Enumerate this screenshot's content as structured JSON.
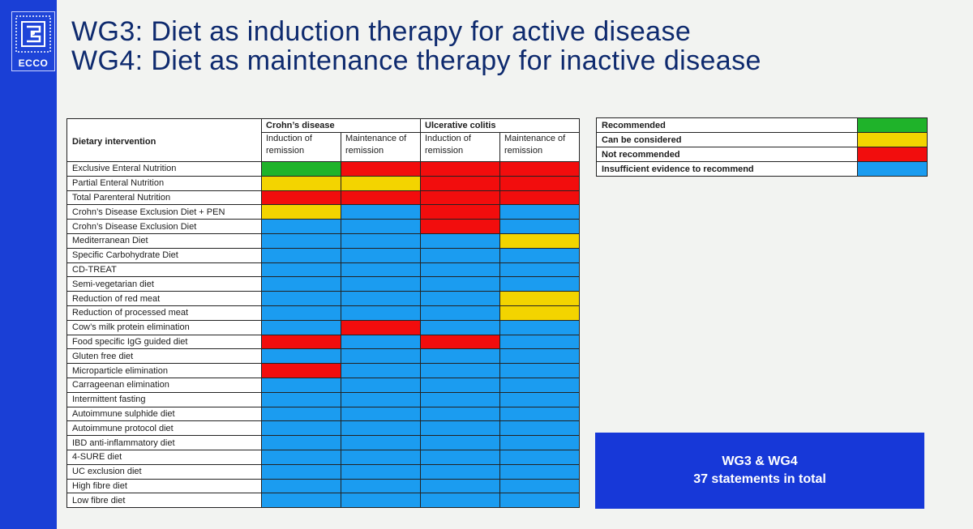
{
  "logo": {
    "text": "ECCO"
  },
  "title": {
    "line1": "WG3: Diet as induction therapy for active disease",
    "line2": "WG4: Diet as maintenance therapy for inactive disease"
  },
  "table": {
    "intervention_header": "Dietary intervention",
    "groups": [
      "Crohn’s disease",
      "Ulcerative colitis"
    ],
    "subheaders": [
      "Induction of remission",
      "Maintenance of remission",
      "Induction of remission",
      "Maintenance of remission"
    ],
    "rows": [
      {
        "name": "Exclusive Enteral Nutrition",
        "values": [
          "R",
          "N",
          "N",
          "N"
        ]
      },
      {
        "name": "Partial Enteral Nutrition",
        "values": [
          "C",
          "C",
          "N",
          "N"
        ]
      },
      {
        "name": "Total Parenteral Nutrition",
        "values": [
          "N",
          "N",
          "N",
          "N"
        ]
      },
      {
        "name": "Crohn’s Disease Exclusion Diet + PEN",
        "values": [
          "C",
          "I",
          "N",
          "I"
        ]
      },
      {
        "name": "Crohn’s Disease Exclusion Diet",
        "values": [
          "I",
          "I",
          "N",
          "I"
        ]
      },
      {
        "name": "Mediterranean Diet",
        "values": [
          "I",
          "I",
          "I",
          "C"
        ]
      },
      {
        "name": "Specific Carbohydrate Diet",
        "values": [
          "I",
          "I",
          "I",
          "I"
        ]
      },
      {
        "name": "CD-TREAT",
        "values": [
          "I",
          "I",
          "I",
          "I"
        ]
      },
      {
        "name": "Semi-vegetarian diet",
        "values": [
          "I",
          "I",
          "I",
          "I"
        ]
      },
      {
        "name": "Reduction of red meat",
        "values": [
          "I",
          "I",
          "I",
          "C"
        ]
      },
      {
        "name": "Reduction of processed meat",
        "values": [
          "I",
          "I",
          "I",
          "C"
        ]
      },
      {
        "name": "Cow’s milk protein elimination",
        "values": [
          "I",
          "N",
          "I",
          "I"
        ]
      },
      {
        "name": "Food specific IgG guided diet",
        "values": [
          "N",
          "I",
          "N",
          "I"
        ]
      },
      {
        "name": "Gluten free diet",
        "values": [
          "I",
          "I",
          "I",
          "I"
        ]
      },
      {
        "name": "Microparticle elimination",
        "values": [
          "N",
          "I",
          "I",
          "I"
        ]
      },
      {
        "name": "Carrageenan elimination",
        "values": [
          "I",
          "I",
          "I",
          "I"
        ]
      },
      {
        "name": "Intermittent fasting",
        "values": [
          "I",
          "I",
          "I",
          "I"
        ]
      },
      {
        "name": "Autoimmune sulphide diet",
        "values": [
          "I",
          "I",
          "I",
          "I"
        ]
      },
      {
        "name": "Autoimmune protocol diet",
        "values": [
          "I",
          "I",
          "I",
          "I"
        ]
      },
      {
        "name": "IBD anti-inflammatory diet",
        "values": [
          "I",
          "I",
          "I",
          "I"
        ]
      },
      {
        "name": "4-SURE diet",
        "values": [
          "I",
          "I",
          "I",
          "I"
        ]
      },
      {
        "name": "UC exclusion diet",
        "values": [
          "I",
          "I",
          "I",
          "I"
        ]
      },
      {
        "name": "High fibre diet",
        "values": [
          "I",
          "I",
          "I",
          "I"
        ]
      },
      {
        "name": "Low fibre diet",
        "values": [
          "I",
          "I",
          "I",
          "I"
        ]
      }
    ]
  },
  "legend": [
    {
      "code": "R",
      "label": "Recommended",
      "color": "#1fb32a"
    },
    {
      "code": "C",
      "label": "Can be considered",
      "color": "#f3d400"
    },
    {
      "code": "N",
      "label": "Not recommended",
      "color": "#f20d0d"
    },
    {
      "code": "I",
      "label": "Insufficient evidence to recommend",
      "color": "#1b9cf0"
    }
  ],
  "summary": {
    "line1": "WG3 & WG4",
    "line2": "37 statements in total"
  }
}
